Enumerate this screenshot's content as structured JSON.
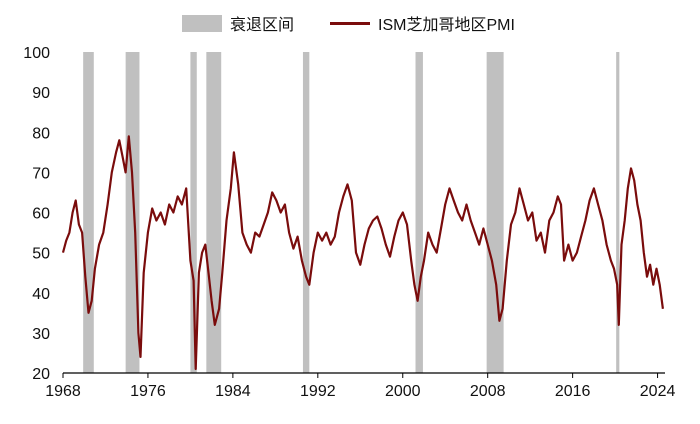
{
  "colors": {
    "recession": "#c0c0c0",
    "pmi": "#7a0c0c",
    "axis": "#000000",
    "text": "#111111"
  },
  "legend": {
    "recession_label": "衰退区间",
    "pmi_label": "ISM芝加哥地区PMI"
  },
  "chart_data": {
    "type": "line",
    "x_range": [
      1968.0,
      2024.7
    ],
    "ylim": [
      20,
      100
    ],
    "yticks": [
      20,
      30,
      40,
      50,
      60,
      70,
      80,
      90,
      100
    ],
    "xticks": [
      {
        "value": 1968,
        "label": "1968"
      },
      {
        "value": 1976,
        "label": "1976"
      },
      {
        "value": 1984,
        "label": "1984"
      },
      {
        "value": 1992,
        "label": "1992"
      },
      {
        "value": 2000,
        "label": "2000"
      },
      {
        "value": 2008,
        "label": "2008"
      },
      {
        "value": 2016,
        "label": "2016"
      },
      {
        "value": 2024,
        "label": "2024"
      }
    ],
    "recessions": [
      {
        "start": 1969.9,
        "end": 1970.9
      },
      {
        "start": 1973.9,
        "end": 1975.2
      },
      {
        "start": 1980.0,
        "end": 1980.6
      },
      {
        "start": 1981.5,
        "end": 1982.9
      },
      {
        "start": 1990.6,
        "end": 1991.2
      },
      {
        "start": 2001.2,
        "end": 2001.9
      },
      {
        "start": 2007.9,
        "end": 2009.5
      },
      {
        "start": 2020.1,
        "end": 2020.4
      }
    ],
    "series": [
      {
        "name": "ISM芝加哥地区PMI",
        "points": [
          [
            1968.0,
            50
          ],
          [
            1968.3,
            53
          ],
          [
            1968.6,
            55
          ],
          [
            1968.9,
            60
          ],
          [
            1969.2,
            63
          ],
          [
            1969.5,
            57
          ],
          [
            1969.8,
            55
          ],
          [
            1970.1,
            44
          ],
          [
            1970.4,
            35
          ],
          [
            1970.7,
            38
          ],
          [
            1971.0,
            46
          ],
          [
            1971.4,
            52
          ],
          [
            1971.8,
            55
          ],
          [
            1972.2,
            62
          ],
          [
            1972.6,
            70
          ],
          [
            1973.0,
            75
          ],
          [
            1973.3,
            78
          ],
          [
            1973.6,
            74
          ],
          [
            1973.9,
            70
          ],
          [
            1974.2,
            79
          ],
          [
            1974.5,
            70
          ],
          [
            1974.8,
            55
          ],
          [
            1975.1,
            30
          ],
          [
            1975.3,
            24
          ],
          [
            1975.6,
            45
          ],
          [
            1976.0,
            55
          ],
          [
            1976.4,
            61
          ],
          [
            1976.8,
            58
          ],
          [
            1977.2,
            60
          ],
          [
            1977.6,
            57
          ],
          [
            1978.0,
            62
          ],
          [
            1978.4,
            60
          ],
          [
            1978.8,
            64
          ],
          [
            1979.2,
            62
          ],
          [
            1979.6,
            66
          ],
          [
            1980.0,
            48
          ],
          [
            1980.3,
            43
          ],
          [
            1980.5,
            21
          ],
          [
            1980.8,
            45
          ],
          [
            1981.1,
            50
          ],
          [
            1981.4,
            52
          ],
          [
            1981.7,
            45
          ],
          [
            1982.0,
            38
          ],
          [
            1982.3,
            32
          ],
          [
            1982.7,
            36
          ],
          [
            1983.0,
            45
          ],
          [
            1983.4,
            58
          ],
          [
            1983.8,
            66
          ],
          [
            1984.1,
            75
          ],
          [
            1984.5,
            67
          ],
          [
            1984.9,
            55
          ],
          [
            1985.3,
            52
          ],
          [
            1985.7,
            50
          ],
          [
            1986.1,
            55
          ],
          [
            1986.5,
            54
          ],
          [
            1986.9,
            57
          ],
          [
            1987.3,
            60
          ],
          [
            1987.7,
            65
          ],
          [
            1988.1,
            63
          ],
          [
            1988.5,
            60
          ],
          [
            1988.9,
            62
          ],
          [
            1989.3,
            55
          ],
          [
            1989.7,
            51
          ],
          [
            1990.1,
            54
          ],
          [
            1990.5,
            48
          ],
          [
            1990.9,
            44
          ],
          [
            1991.2,
            42
          ],
          [
            1991.6,
            50
          ],
          [
            1992.0,
            55
          ],
          [
            1992.4,
            53
          ],
          [
            1992.8,
            55
          ],
          [
            1993.2,
            52
          ],
          [
            1993.6,
            54
          ],
          [
            1994.0,
            60
          ],
          [
            1994.4,
            64
          ],
          [
            1994.8,
            67
          ],
          [
            1995.2,
            63
          ],
          [
            1995.6,
            50
          ],
          [
            1996.0,
            47
          ],
          [
            1996.4,
            52
          ],
          [
            1996.8,
            56
          ],
          [
            1997.2,
            58
          ],
          [
            1997.6,
            59
          ],
          [
            1998.0,
            56
          ],
          [
            1998.4,
            52
          ],
          [
            1998.8,
            49
          ],
          [
            1999.2,
            54
          ],
          [
            1999.6,
            58
          ],
          [
            2000.0,
            60
          ],
          [
            2000.4,
            57
          ],
          [
            2000.8,
            48
          ],
          [
            2001.1,
            42
          ],
          [
            2001.4,
            38
          ],
          [
            2001.7,
            44
          ],
          [
            2002.0,
            48
          ],
          [
            2002.4,
            55
          ],
          [
            2002.8,
            52
          ],
          [
            2003.2,
            50
          ],
          [
            2003.6,
            56
          ],
          [
            2004.0,
            62
          ],
          [
            2004.4,
            66
          ],
          [
            2004.8,
            63
          ],
          [
            2005.2,
            60
          ],
          [
            2005.6,
            58
          ],
          [
            2006.0,
            62
          ],
          [
            2006.4,
            58
          ],
          [
            2006.8,
            55
          ],
          [
            2007.2,
            52
          ],
          [
            2007.6,
            56
          ],
          [
            2008.0,
            52
          ],
          [
            2008.4,
            48
          ],
          [
            2008.8,
            42
          ],
          [
            2009.1,
            33
          ],
          [
            2009.4,
            36
          ],
          [
            2009.8,
            48
          ],
          [
            2010.2,
            57
          ],
          [
            2010.6,
            60
          ],
          [
            2011.0,
            66
          ],
          [
            2011.4,
            62
          ],
          [
            2011.8,
            58
          ],
          [
            2012.2,
            60
          ],
          [
            2012.6,
            53
          ],
          [
            2013.0,
            55
          ],
          [
            2013.4,
            50
          ],
          [
            2013.8,
            58
          ],
          [
            2014.2,
            60
          ],
          [
            2014.6,
            64
          ],
          [
            2014.9,
            62
          ],
          [
            2015.2,
            48
          ],
          [
            2015.6,
            52
          ],
          [
            2016.0,
            48
          ],
          [
            2016.4,
            50
          ],
          [
            2016.8,
            54
          ],
          [
            2017.2,
            58
          ],
          [
            2017.6,
            63
          ],
          [
            2018.0,
            66
          ],
          [
            2018.4,
            62
          ],
          [
            2018.8,
            58
          ],
          [
            2019.2,
            52
          ],
          [
            2019.6,
            48
          ],
          [
            2019.9,
            46
          ],
          [
            2020.2,
            42
          ],
          [
            2020.35,
            32
          ],
          [
            2020.6,
            52
          ],
          [
            2020.9,
            58
          ],
          [
            2021.2,
            66
          ],
          [
            2021.5,
            71
          ],
          [
            2021.8,
            68
          ],
          [
            2022.1,
            62
          ],
          [
            2022.4,
            58
          ],
          [
            2022.7,
            50
          ],
          [
            2023.0,
            44
          ],
          [
            2023.3,
            47
          ],
          [
            2023.6,
            42
          ],
          [
            2023.9,
            46
          ],
          [
            2024.2,
            42
          ],
          [
            2024.5,
            36
          ]
        ]
      }
    ]
  }
}
